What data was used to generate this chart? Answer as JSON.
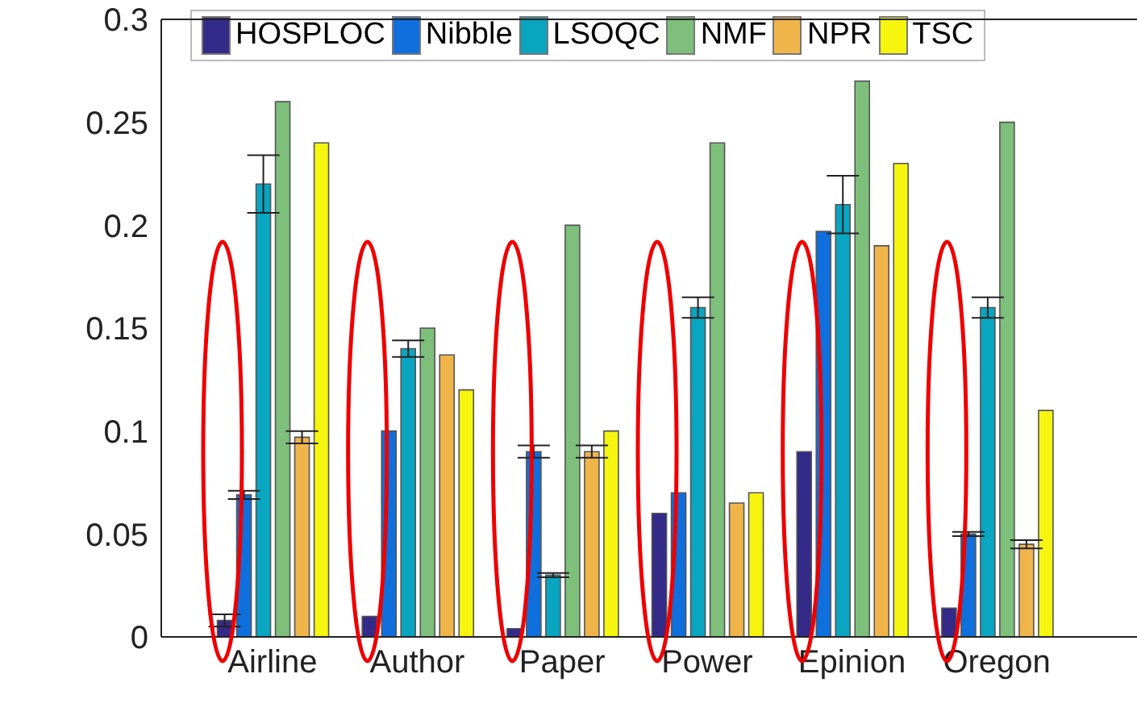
{
  "chart_data": {
    "type": "bar",
    "categories": [
      "Airline",
      "Author",
      "Paper",
      "Power",
      "Epinion",
      "Oregon"
    ],
    "series": [
      {
        "name": "HOSPLOC",
        "color": "#342a87",
        "values": [
          0.008,
          0.01,
          0.004,
          0.06,
          0.09,
          0.014
        ],
        "errors": [
          0.003,
          null,
          null,
          null,
          null,
          null
        ]
      },
      {
        "name": "Nibble",
        "color": "#0f6fdd",
        "values": [
          0.069,
          0.1,
          0.09,
          0.07,
          0.197,
          0.05
        ],
        "errors": [
          0.002,
          null,
          0.003,
          null,
          null,
          0.001
        ]
      },
      {
        "name": "LSOQC",
        "color": "#0aa5c0",
        "values": [
          0.22,
          0.14,
          0.03,
          0.16,
          0.21,
          0.16
        ],
        "errors": [
          0.014,
          0.004,
          0.001,
          0.005,
          0.014,
          0.005
        ]
      },
      {
        "name": "NMF",
        "color": "#7dbf7b",
        "values": [
          0.26,
          0.15,
          0.2,
          0.24,
          0.27,
          0.25
        ]
      },
      {
        "name": "NPR",
        "color": "#f0b54a",
        "values": [
          0.097,
          0.137,
          0.09,
          0.065,
          0.19,
          0.045
        ],
        "errors": [
          0.003,
          null,
          0.003,
          null,
          null,
          0.002
        ]
      },
      {
        "name": "TSC",
        "color": "#f5f50f",
        "values": [
          0.24,
          0.12,
          0.1,
          0.07,
          0.23,
          0.11
        ]
      }
    ],
    "ylim": [
      0,
      0.3
    ],
    "yticks": [
      0,
      0.05,
      0.1,
      0.15,
      0.2,
      0.25,
      0.3
    ],
    "grid": false,
    "legend": "top"
  }
}
